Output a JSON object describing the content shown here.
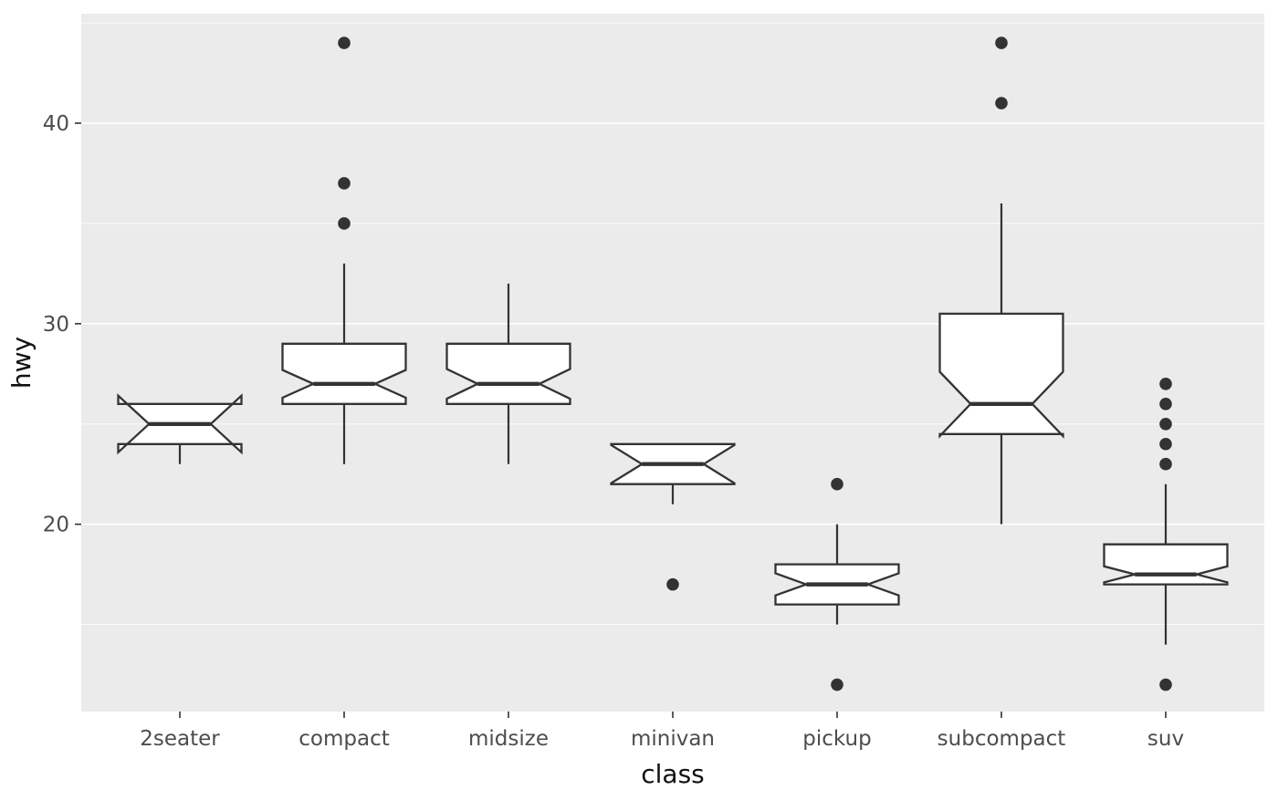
{
  "chart_data": {
    "type": "boxplot",
    "title": "",
    "xlabel": "class",
    "ylabel": "hwy",
    "notch": true,
    "legend": "none",
    "grid": "on",
    "categories": [
      "2seater",
      "compact",
      "midsize",
      "minivan",
      "pickup",
      "subcompact",
      "suv"
    ],
    "y_axis": {
      "ticks": [
        20,
        30,
        40
      ],
      "minor_ticks": [
        15,
        25,
        35,
        45
      ],
      "domain": [
        10.66,
        45.46
      ]
    },
    "boxes": [
      {
        "class": "2seater",
        "whisker_low": 23,
        "q1": 24,
        "median": 25,
        "q3": 26,
        "whisker_high": 26,
        "notch_low": 23.59,
        "notch_high": 26.41,
        "outliers": []
      },
      {
        "class": "compact",
        "whisker_low": 23,
        "q1": 26,
        "median": 27,
        "q3": 29,
        "whisker_high": 33,
        "notch_low": 26.31,
        "notch_high": 27.69,
        "outliers": [
          35,
          37,
          44
        ]
      },
      {
        "class": "midsize",
        "whisker_low": 23,
        "q1": 26,
        "median": 27,
        "q3": 29,
        "whisker_high": 32,
        "notch_low": 26.26,
        "notch_high": 27.74,
        "outliers": []
      },
      {
        "class": "minivan",
        "whisker_low": 21,
        "q1": 22,
        "median": 23,
        "q3": 24,
        "whisker_high": 24,
        "notch_low": 22.05,
        "notch_high": 23.95,
        "outliers": [
          17
        ]
      },
      {
        "class": "pickup",
        "whisker_low": 15,
        "q1": 16,
        "median": 17,
        "q3": 18,
        "whisker_high": 20,
        "notch_low": 16.45,
        "notch_high": 17.55,
        "outliers": [
          12,
          22
        ]
      },
      {
        "class": "subcompact",
        "whisker_low": 20,
        "q1": 24.5,
        "median": 26,
        "q3": 30.5,
        "whisker_high": 36,
        "notch_low": 24.4,
        "notch_high": 27.6,
        "outliers": [
          41,
          44
        ]
      },
      {
        "class": "suv",
        "whisker_low": 14,
        "q1": 17,
        "median": 17.5,
        "q3": 19,
        "whisker_high": 22,
        "notch_low": 17.1,
        "notch_high": 17.9,
        "outliers": [
          12,
          23,
          24,
          25,
          26,
          27
        ]
      }
    ],
    "style": {
      "panel_bg": "#EBEBEB",
      "grid_color": "#FFFFFF",
      "box_stroke": "#333333",
      "box_fill": "#FFFFFF",
      "outlier_color": "#333333",
      "tick_label_color": "#4D4D4D",
      "axis_title_color": "#111111",
      "tick_mark_color": "#333333"
    }
  }
}
